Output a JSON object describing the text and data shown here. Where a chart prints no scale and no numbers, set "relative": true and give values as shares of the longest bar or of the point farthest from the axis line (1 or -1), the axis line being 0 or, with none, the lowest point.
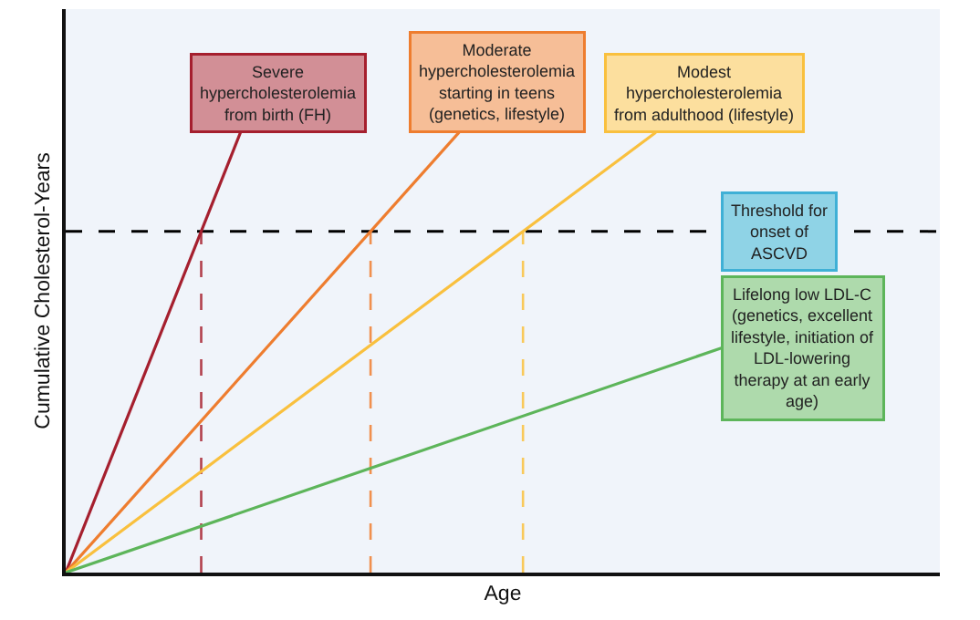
{
  "chart_data": {
    "type": "line",
    "relative": true,
    "xlabel": "Age",
    "ylabel": "Cumulative Cholesterol-Years",
    "legend": false,
    "grid": false,
    "marker": "none",
    "line_style": "solid",
    "categories": [
      null,
      null,
      null,
      null,
      null,
      null,
      null,
      null,
      null,
      null,
      null,
      null,
      null,
      null,
      null,
      null,
      null,
      null,
      null,
      null,
      null,
      null,
      null,
      null,
      null,
      null,
      null,
      null,
      null,
      null,
      null,
      null,
      null,
      null,
      null,
      null,
      null,
      null,
      null,
      null,
      null
    ],
    "series": [
      {
        "name": "Severe\nhypercholesterolemia\nfrom birth (FH)",
        "color": "#a51f2e",
        "values": [
          0,
          null,
          null,
          null,
          null,
          null,
          null,
          null,
          1,
          null,
          null,
          null,
          null,
          null,
          null,
          null,
          null,
          null,
          null,
          null,
          null,
          null,
          null,
          null,
          null,
          null,
          null,
          null,
          null,
          null,
          null,
          null,
          null,
          null,
          null,
          null,
          null,
          null,
          null,
          null,
          null
        ]
      },
      {
        "name": "Moderate\nhypercholesterolemia\nstarting in teens\n(genetics, lifestyle)",
        "color": "#ee7d2f",
        "values": [
          0,
          null,
          null,
          null,
          null,
          null,
          null,
          null,
          null,
          null,
          null,
          null,
          null,
          null,
          null,
          null,
          null,
          null,
          1,
          null,
          null,
          null,
          null,
          null,
          null,
          null,
          null,
          null,
          null,
          null,
          null,
          null,
          null,
          null,
          null,
          null,
          null,
          null,
          null,
          null,
          null
        ]
      },
      {
        "name": "Modest\nhypercholesterolemia\nfrom adulthood (lifestyle)",
        "color": "#f9c03e",
        "values": [
          0,
          null,
          null,
          null,
          null,
          null,
          null,
          null,
          null,
          null,
          null,
          null,
          null,
          null,
          null,
          null,
          null,
          null,
          null,
          null,
          null,
          null,
          null,
          null,
          null,
          null,
          null,
          1,
          null,
          null,
          null,
          null,
          null,
          null,
          null,
          null,
          null,
          null,
          null,
          null,
          null
        ]
      },
      {
        "name": "Lifelong low LDL-C\n(genetics, excellent\nlifestyle, initiation of\nLDL-lowering\ntherapy at an early\nage)",
        "color": "#5db55a",
        "values": [
          0,
          null,
          null,
          null,
          null,
          null,
          null,
          null,
          null,
          null,
          null,
          null,
          null,
          null,
          null,
          null,
          null,
          null,
          null,
          null,
          null,
          null,
          null,
          null,
          null,
          null,
          null,
          null,
          null,
          null,
          0.51,
          null,
          null,
          null,
          null,
          null,
          null,
          null,
          null,
          null,
          null
        ]
      }
    ],
    "ref_lines": [
      {
        "axis": "y",
        "value": 0.775,
        "label": "Threshold for\nonset of\nASCVD",
        "color": "#000000",
        "line_style": "dashed"
      }
    ]
  }
}
